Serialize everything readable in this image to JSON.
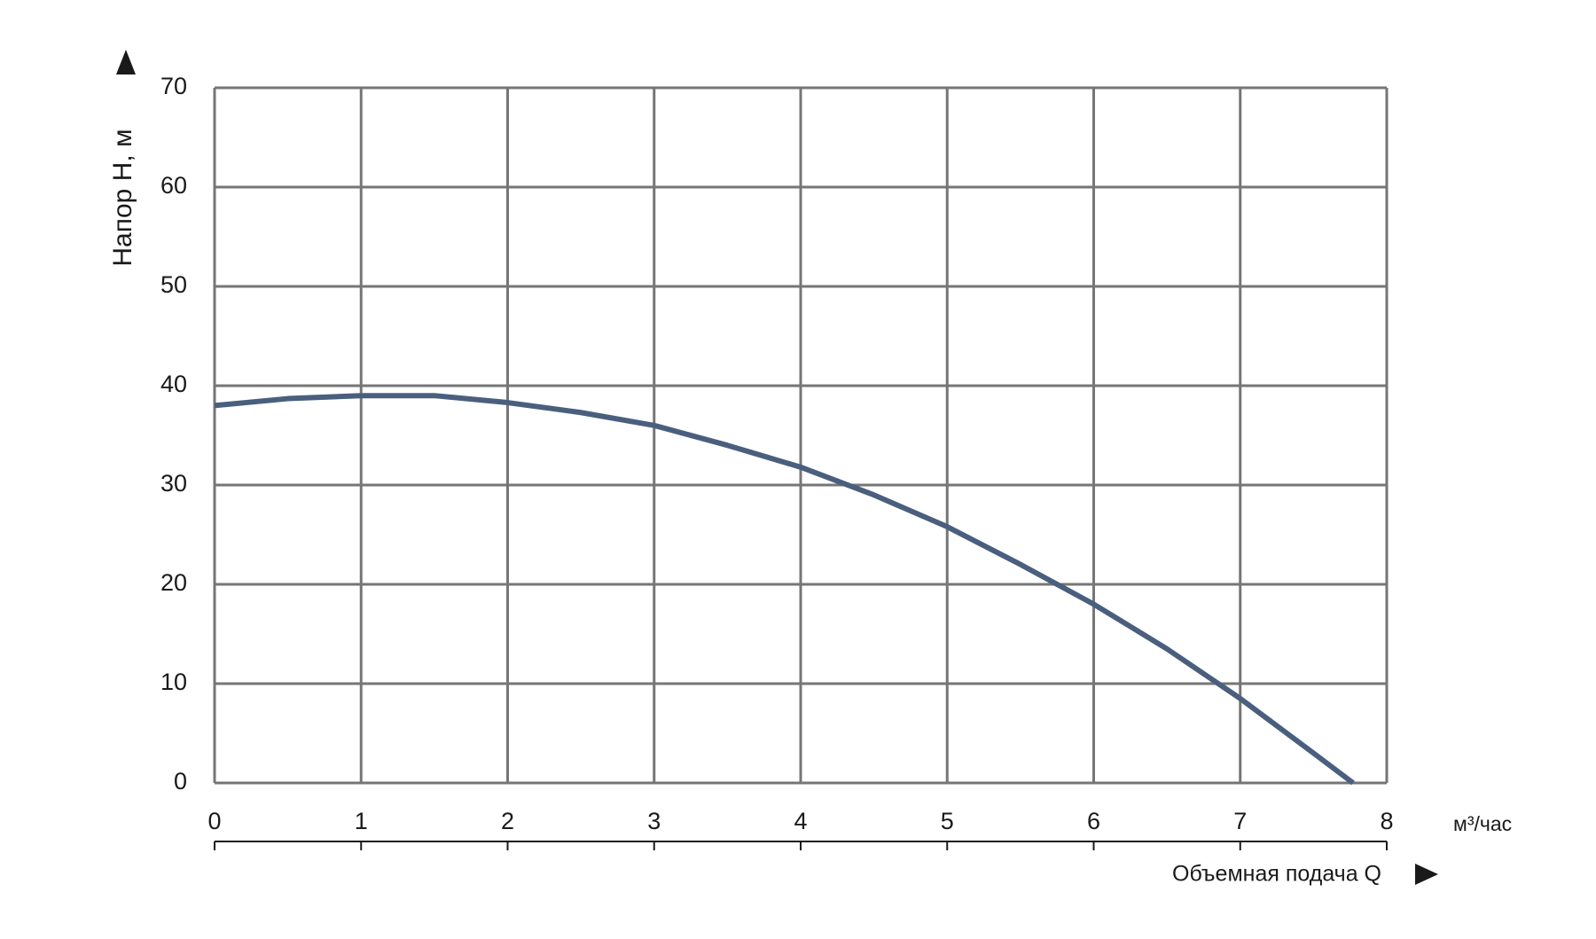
{
  "chart_data": {
    "type": "line",
    "ylabel": "Напор H, м",
    "xlabel": "Объемная подача Q",
    "x_unit": "м³/час",
    "x": [
      0,
      0.5,
      1,
      1.5,
      2,
      2.5,
      3,
      3.5,
      4,
      4.5,
      5,
      5.5,
      6,
      6.5,
      7,
      7.5,
      7.77
    ],
    "values": [
      38,
      38.7,
      39,
      39,
      38.3,
      37.3,
      36,
      34,
      31.8,
      29,
      25.8,
      22,
      18,
      13.5,
      8.5,
      3,
      0
    ],
    "color": "#4a5f7e",
    "xlim": [
      0,
      8
    ],
    "ylim": [
      0,
      70
    ],
    "xticks": [
      0,
      1,
      2,
      3,
      4,
      5,
      6,
      7,
      8
    ],
    "yticks": [
      0,
      10,
      20,
      30,
      40,
      50,
      60,
      70
    ],
    "grid": true
  }
}
